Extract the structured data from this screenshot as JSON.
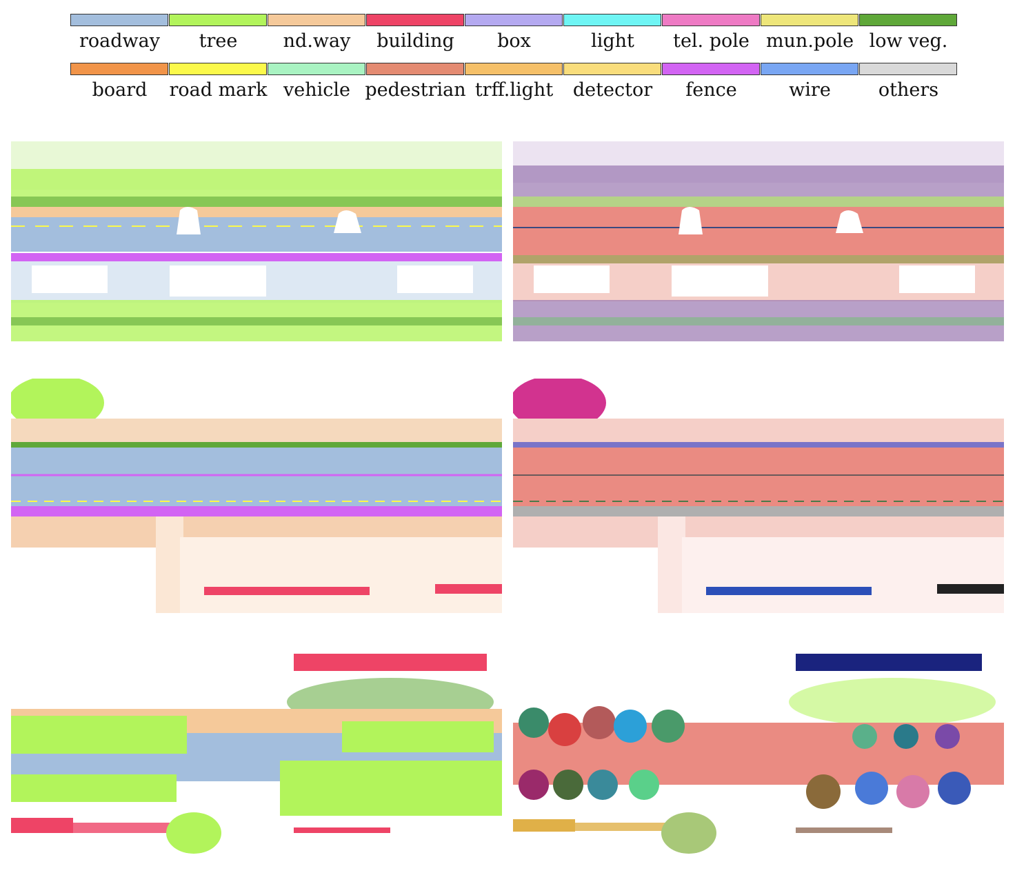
{
  "legend": {
    "row1": [
      {
        "label": "roadway",
        "color": "#a3bedd"
      },
      {
        "label": "tree",
        "color": "#b2f45b"
      },
      {
        "label": "nd.way",
        "color": "#f5c99a"
      },
      {
        "label": "building",
        "color": "#ee4466"
      },
      {
        "label": "box",
        "color": "#b4a9f0"
      },
      {
        "label": "light",
        "color": "#6ff5f4"
      },
      {
        "label": "tel. pole",
        "color": "#ee7ac4"
      },
      {
        "label": "mun.pole",
        "color": "#eee67a"
      },
      {
        "label": "low veg.",
        "color": "#5fa839"
      }
    ],
    "row2": [
      {
        "label": "board",
        "color": "#f19449"
      },
      {
        "label": "road mark",
        "color": "#fbf94b"
      },
      {
        "label": "vehicle",
        "color": "#a9f3c2"
      },
      {
        "label": "pedestrian",
        "color": "#e48b72"
      },
      {
        "label": "trff.light",
        "color": "#f5c069"
      },
      {
        "label": "detector",
        "color": "#f9dd7c"
      },
      {
        "label": "fence",
        "color": "#d264f3"
      },
      {
        "label": "wire",
        "color": "#79a6f3"
      },
      {
        "label": "others",
        "color": "#d9d9d9"
      }
    ]
  },
  "panels": [
    {
      "id": "semantic-1",
      "kind": "semantic"
    },
    {
      "id": "instance-1",
      "kind": "instance"
    },
    {
      "id": "semantic-2",
      "kind": "semantic"
    },
    {
      "id": "instance-2",
      "kind": "instance"
    },
    {
      "id": "semantic-3",
      "kind": "semantic"
    },
    {
      "id": "instance-3",
      "kind": "instance"
    }
  ]
}
